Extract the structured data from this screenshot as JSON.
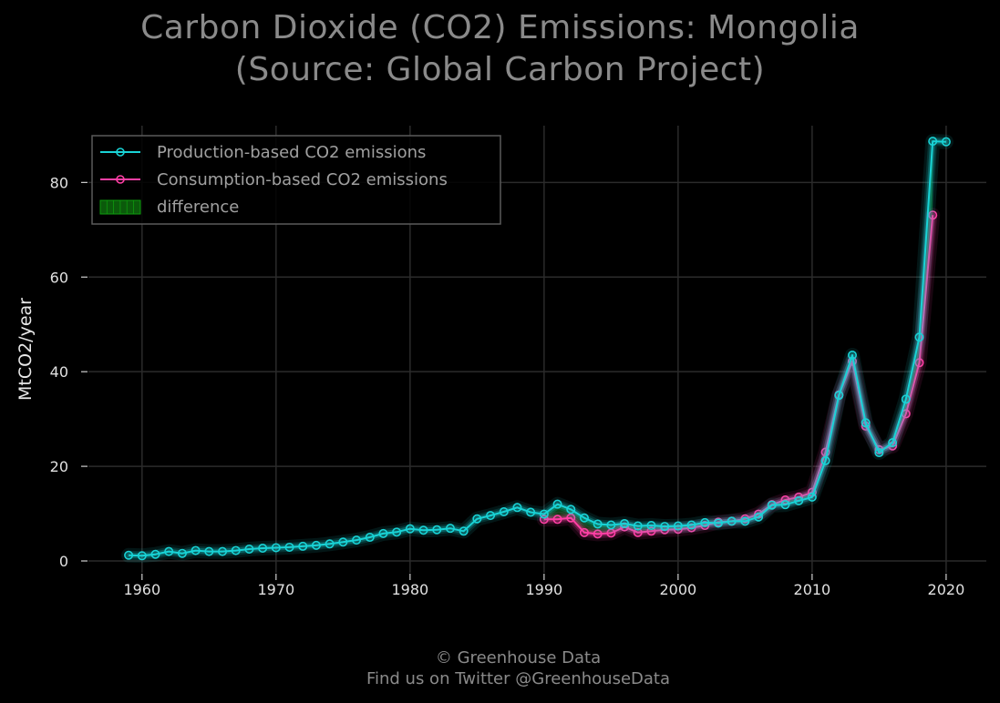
{
  "chart_data": {
    "type": "line",
    "title": "Carbon Dioxide (CO2) Emissions: Mongolia",
    "subtitle": "(Source: Global Carbon Project)",
    "xlabel": "",
    "ylabel": "MtCO2/year",
    "xlim": [
      1956,
      2023
    ],
    "ylim": [
      -2.5,
      92
    ],
    "x_ticks": [
      1960,
      1970,
      1980,
      1990,
      2000,
      2010,
      2020
    ],
    "y_ticks": [
      0,
      20,
      40,
      60,
      80
    ],
    "grid": true,
    "legend_position": "top-left",
    "legend": [
      {
        "label": "Production-based CO2 emissions",
        "kind": "line",
        "color": "#19d3d6"
      },
      {
        "label": "Consumption-based CO2 emissions",
        "kind": "line",
        "color": "#ff3fa5"
      },
      {
        "label": "difference",
        "kind": "patch",
        "color": "#0b5a0b"
      }
    ],
    "series": [
      {
        "name": "Production-based CO2 emissions",
        "color": "#19d3d6",
        "x": [
          1959,
          1960,
          1961,
          1962,
          1963,
          1964,
          1965,
          1966,
          1967,
          1968,
          1969,
          1970,
          1971,
          1972,
          1973,
          1974,
          1975,
          1976,
          1977,
          1978,
          1979,
          1980,
          1981,
          1982,
          1983,
          1984,
          1985,
          1986,
          1987,
          1988,
          1989,
          1990,
          1991,
          1992,
          1993,
          1994,
          1995,
          1996,
          1997,
          1998,
          1999,
          2000,
          2001,
          2002,
          2003,
          2004,
          2005,
          2006,
          2007,
          2008,
          2009,
          2010,
          2011,
          2012,
          2013,
          2014,
          2015,
          2016,
          2017,
          2018,
          2019,
          2020
        ],
        "values": [
          1.2,
          1.1,
          1.4,
          2.0,
          1.6,
          2.2,
          2.0,
          2.0,
          2.2,
          2.5,
          2.7,
          2.8,
          2.9,
          3.1,
          3.3,
          3.6,
          4.0,
          4.4,
          5.0,
          5.8,
          6.1,
          6.8,
          6.5,
          6.6,
          6.9,
          6.3,
          8.9,
          9.6,
          10.4,
          11.3,
          10.3,
          9.9,
          12.0,
          10.9,
          9.1,
          7.8,
          7.6,
          7.9,
          7.4,
          7.5,
          7.3,
          7.4,
          7.6,
          8.1,
          8.0,
          8.4,
          8.4,
          9.3,
          11.8,
          11.9,
          12.7,
          13.5,
          21.2,
          35.0,
          43.5,
          29.2,
          22.9,
          25.0,
          34.2,
          47.3,
          88.7,
          88.6
        ]
      },
      {
        "name": "Consumption-based CO2 emissions",
        "color": "#ff3fa5",
        "x": [
          1990,
          1991,
          1992,
          1993,
          1994,
          1995,
          1996,
          1997,
          1998,
          1999,
          2000,
          2001,
          2002,
          2003,
          2004,
          2005,
          2006,
          2007,
          2008,
          2009,
          2010,
          2011,
          2012,
          2013,
          2014,
          2015,
          2016,
          2017,
          2018,
          2019
        ],
        "values": [
          8.8,
          8.8,
          9.1,
          6.0,
          5.7,
          5.9,
          7.2,
          6.0,
          6.3,
          6.6,
          6.7,
          7.0,
          7.5,
          8.2,
          8.4,
          8.9,
          9.9,
          11.9,
          12.9,
          13.5,
          14.5,
          23.0,
          35.1,
          42.2,
          28.5,
          23.5,
          24.3,
          31.1,
          41.9,
          73.1
        ]
      }
    ]
  },
  "footer": {
    "line1": "© Greenhouse Data",
    "line2": "Find us on Twitter @GreenhouseData"
  }
}
